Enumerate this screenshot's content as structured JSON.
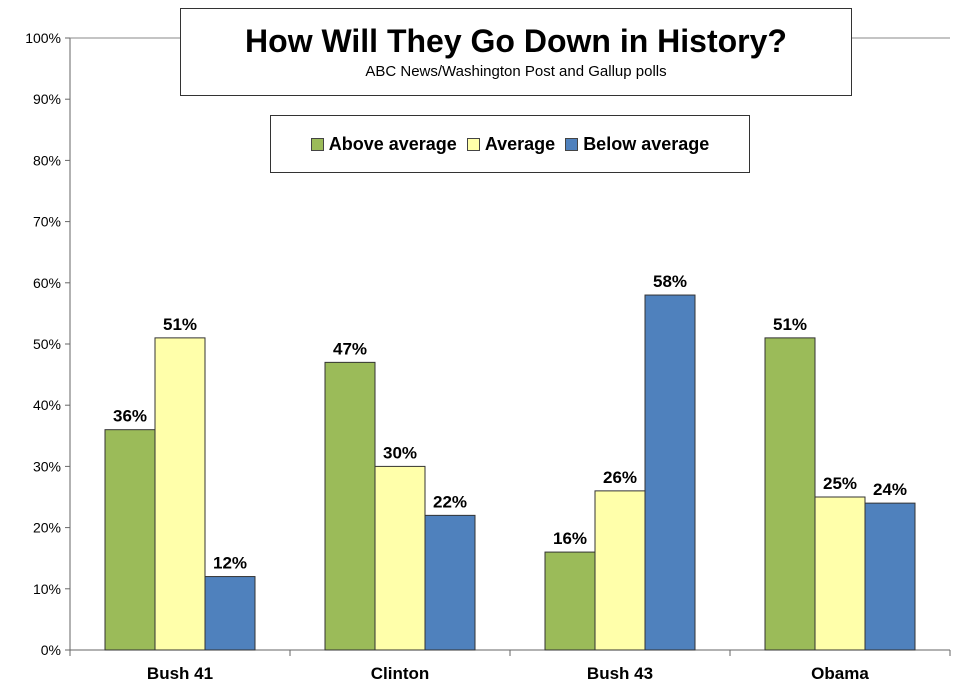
{
  "chart_data": {
    "type": "bar",
    "title": "How Will They Go Down in History?",
    "subtitle": "ABC News/Washington  Post  and Gallup  polls",
    "categories": [
      "Bush 41",
      "Clinton",
      "Bush 43",
      "Obama"
    ],
    "series": [
      {
        "name": "Above average",
        "color": "#9BBB59",
        "values": [
          36,
          47,
          16,
          51
        ],
        "labels": [
          "36%",
          "47%",
          "16%",
          "51%"
        ]
      },
      {
        "name": "Average",
        "color": "#FFFFAA",
        "values": [
          51,
          30,
          26,
          25
        ],
        "labels": [
          "51%",
          "30%",
          "26%",
          "25%"
        ]
      },
      {
        "name": "Below average",
        "color": "#4F81BD",
        "values": [
          12,
          22,
          58,
          24
        ],
        "labels": [
          "12%",
          "22%",
          "58%",
          "24%"
        ]
      }
    ],
    "ylim": [
      0,
      100
    ],
    "yticks": [
      "0%",
      "10%",
      "20%",
      "30%",
      "40%",
      "50%",
      "60%",
      "70%",
      "80%",
      "90%",
      "100%"
    ],
    "legend_position": "top-center",
    "grid": false
  }
}
